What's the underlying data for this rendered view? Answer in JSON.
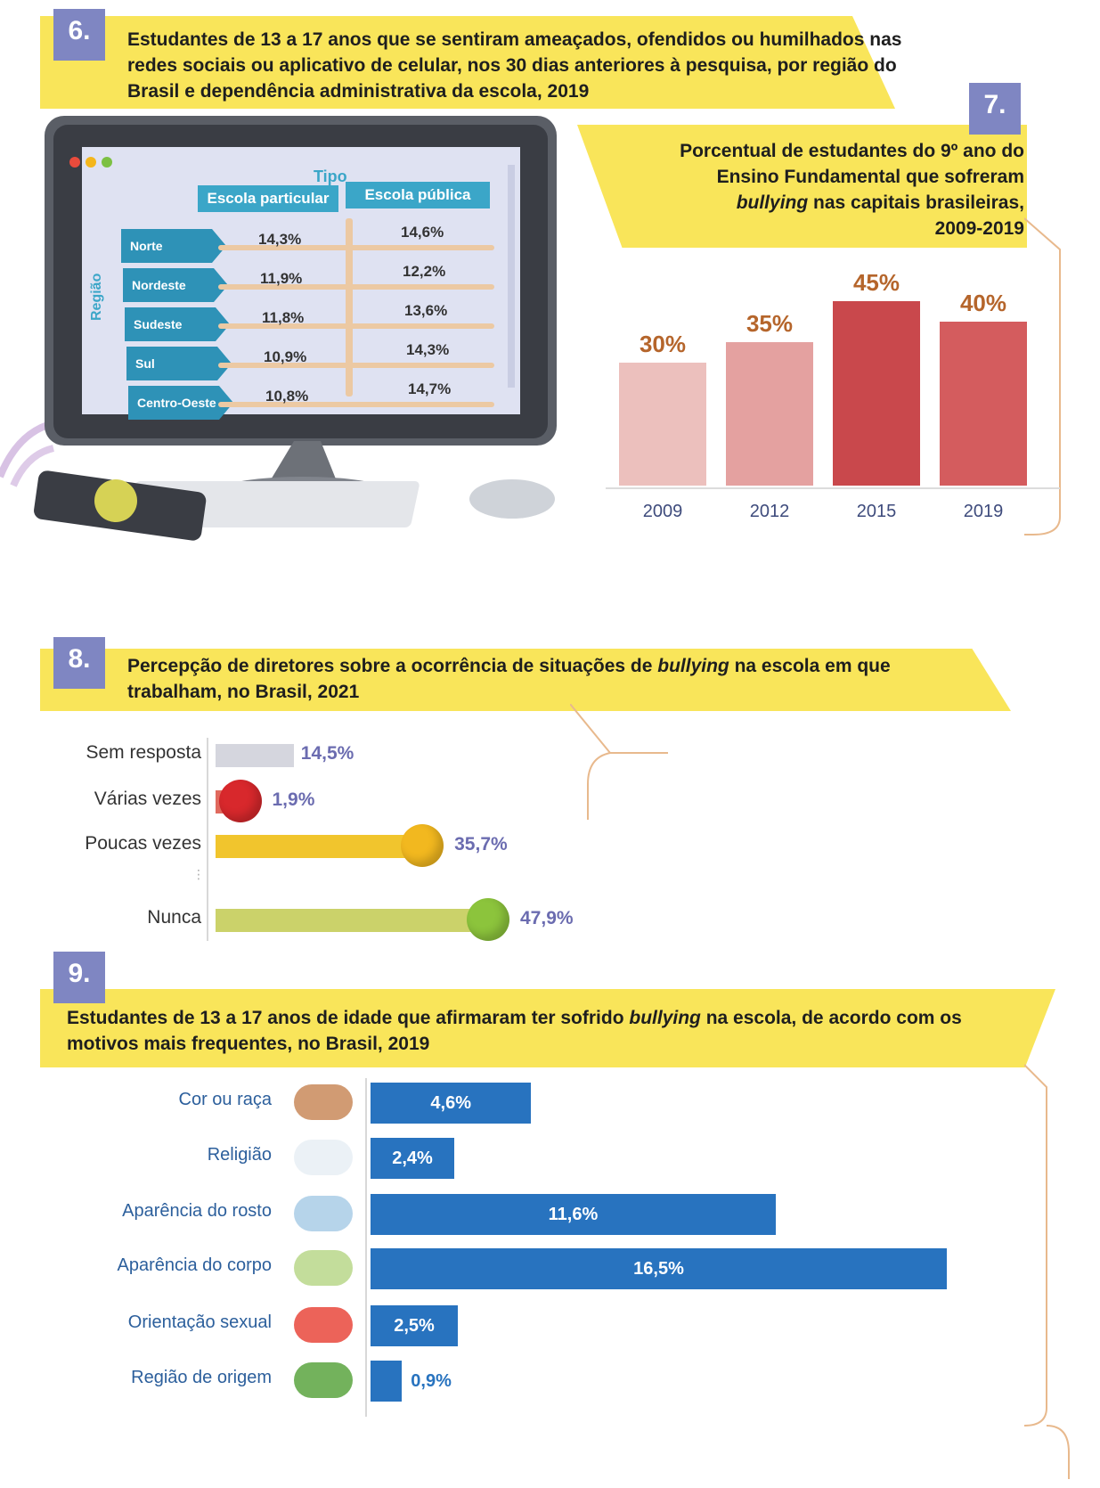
{
  "section6": {
    "number": "6.",
    "title": "Estudantes de 13 a 17 anos que se sentiram ameaçados, ofendidos ou humilhados nas redes sociais ou aplicativo de celular, nos 30 dias anteriores à pesquisa, por região do Brasil e dependência administrativa da escola, 2019",
    "table": {
      "group_label": "Tipo",
      "axis_label": "Região",
      "columns": [
        "Escola particular",
        "Escola pública"
      ],
      "rows": [
        {
          "region": "Norte",
          "values": [
            "14,3%",
            "14,6%"
          ]
        },
        {
          "region": "Nordeste",
          "values": [
            "11,9%",
            "12,2%"
          ]
        },
        {
          "region": "Sudeste",
          "values": [
            "11,8%",
            "13,6%"
          ]
        },
        {
          "region": "Sul",
          "values": [
            "10,9%",
            "14,3%"
          ]
        },
        {
          "region": "Centro-Oeste",
          "values": [
            "10,8%",
            "14,7%"
          ]
        }
      ]
    }
  },
  "section7": {
    "number": "7.",
    "title_line1": "Porcentual de estudantes do 9º ano do",
    "title_line2": "Ensino Fundamental que sofreram",
    "title_line3_italic": "bullying",
    "title_line3_rest": " nas capitais brasileiras,",
    "title_line4": "2009-2019"
  },
  "section8": {
    "number": "8.",
    "title_part1": "Percepção de diretores sobre a ocorrência de situações de ",
    "title_italic": "bullying",
    "title_part2": " na escola em que trabalham, no Brasil, 2021"
  },
  "section9": {
    "number": "9.",
    "title_part1": "Estudantes de 13 a 17 anos de idade que afirmaram ter sofrido ",
    "title_italic": "bullying",
    "title_part2": " na escola, de acordo com os motivos mais frequentes, no Brasil, 2019"
  },
  "chart_data": [
    {
      "type": "bar",
      "id": "chart7",
      "categories": [
        "2009",
        "2012",
        "2015",
        "2019"
      ],
      "values": [
        30,
        35,
        45,
        40
      ],
      "labels": [
        "30%",
        "35%",
        "45%",
        "40%"
      ],
      "ylim": [
        0,
        50
      ],
      "colors": [
        "#ecc0bd",
        "#e4a1a0",
        "#c9484c",
        "#d45c5e"
      ]
    },
    {
      "type": "bar",
      "id": "chart8",
      "orientation": "horizontal",
      "categories": [
        "Sem resposta",
        "Várias vezes",
        "Poucas vezes",
        "Nunca"
      ],
      "values": [
        14.5,
        1.9,
        35.7,
        47.9
      ],
      "labels": [
        "14,5%",
        "1,9%",
        "35,7%",
        "47,9%"
      ],
      "colors": [
        "#d5d6de",
        "#e06a5e",
        "#f1c52d",
        "#cbd26a"
      ]
    },
    {
      "type": "bar",
      "id": "chart9",
      "orientation": "horizontal",
      "categories": [
        "Cor ou raça",
        "Religião",
        "Aparência do rosto",
        "Aparência do corpo",
        "Orientação sexual",
        "Região de origem"
      ],
      "values": [
        4.6,
        2.4,
        11.6,
        16.5,
        2.5,
        0.9
      ],
      "labels": [
        "4,6%",
        "2,4%",
        "11,6%",
        "16,5%",
        "2,5%",
        "0,9%"
      ],
      "color": "#2873bf"
    }
  ]
}
